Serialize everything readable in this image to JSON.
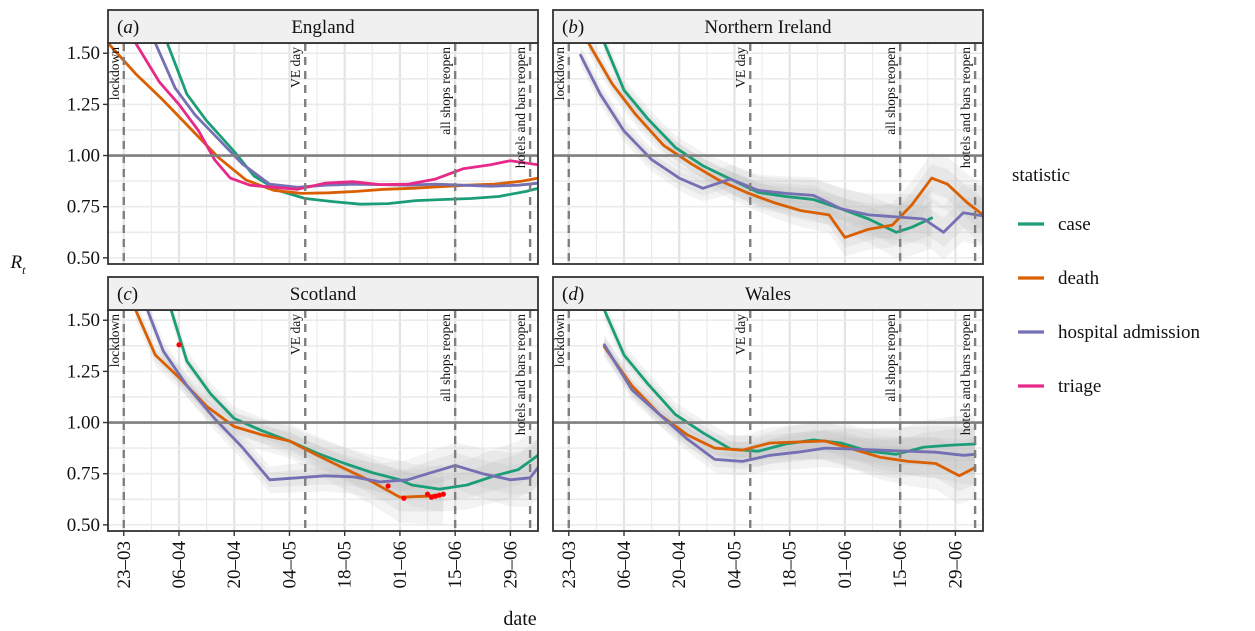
{
  "figure": {
    "ylabel": "R",
    "ylabel_sub": "t",
    "xlabel": "date",
    "legend_title": "statistic"
  },
  "colors": {
    "case": "#1b9e77",
    "death": "#d95f02",
    "hospital admission": "#7570b3",
    "triage": "#e7298a",
    "ribbon": "#bdbdbd",
    "strip_bg": "#f0f0f0",
    "frame": "#333333",
    "grid": "#ebebeb",
    "event_line": "#7f7f7f",
    "hline": "#7f7f7f",
    "marker": "#ff0000"
  },
  "chart_data": {
    "type": "line",
    "facets": [
      "(a) England",
      "(b) Northern Ireland",
      "(c) Scotland",
      "(d) Wales"
    ],
    "x_domain": [
      "2020-03-19",
      "2020-07-06"
    ],
    "x_ticks": [
      "2020-03-23",
      "2020-04-06",
      "2020-04-20",
      "2020-05-04",
      "2020-05-18",
      "2020-06-01",
      "2020-06-15",
      "2020-06-29"
    ],
    "x_tick_labels": [
      "23–03",
      "06–04",
      "20–04",
      "04–05",
      "18–05",
      "01–06",
      "15–06",
      "29–06"
    ],
    "ylim": [
      0.47,
      1.55
    ],
    "y_ticks": [
      0.5,
      0.75,
      1.0,
      1.25,
      1.5
    ],
    "y_tick_labels": [
      "0.50",
      "0.75",
      "1.00",
      "1.25",
      "1.50"
    ],
    "reference_line": 1.0,
    "events": [
      {
        "date": "2020-03-23",
        "label": "lockdown"
      },
      {
        "date": "2020-05-08",
        "label": "VE day"
      },
      {
        "date": "2020-06-15",
        "label": "all shops reopen"
      },
      {
        "date": "2020-07-04",
        "label": "hotels and bars reopen"
      }
    ],
    "legend": {
      "title": "statistic",
      "position": "right",
      "entries": [
        "case",
        "death",
        "hospital admission",
        "triage"
      ]
    },
    "panels": [
      {
        "tag": "(a)",
        "title": "England",
        "ribbon": false,
        "markers": [],
        "series": [
          {
            "name": "case",
            "x": [
              "2020-04-03",
              "2020-04-08",
              "2020-04-13",
              "2020-04-20",
              "2020-04-25",
              "2020-05-01",
              "2020-05-08",
              "2020-05-15",
              "2020-05-22",
              "2020-05-29",
              "2020-06-05",
              "2020-06-12",
              "2020-06-19",
              "2020-06-26",
              "2020-07-03",
              "2020-07-06"
            ],
            "values": [
              1.55,
              1.3,
              1.17,
              1.02,
              0.9,
              0.83,
              0.79,
              0.775,
              0.762,
              0.765,
              0.78,
              0.785,
              0.79,
              0.8,
              0.825,
              0.84
            ]
          },
          {
            "name": "death",
            "x": [
              "2020-03-19",
              "2020-03-26",
              "2020-04-02",
              "2020-04-09",
              "2020-04-16",
              "2020-04-23",
              "2020-04-30",
              "2020-05-07",
              "2020-05-14",
              "2020-05-21",
              "2020-05-28",
              "2020-06-04",
              "2020-06-11",
              "2020-06-18",
              "2020-06-25",
              "2020-07-02",
              "2020-07-06"
            ],
            "values": [
              1.55,
              1.4,
              1.27,
              1.13,
              0.99,
              0.88,
              0.83,
              0.815,
              0.818,
              0.825,
              0.835,
              0.84,
              0.848,
              0.855,
              0.86,
              0.875,
              0.89
            ]
          },
          {
            "name": "hospital admission",
            "x": [
              "2020-03-31",
              "2020-04-05",
              "2020-04-10",
              "2020-04-16",
              "2020-04-22",
              "2020-04-29",
              "2020-05-06",
              "2020-05-13",
              "2020-05-20",
              "2020-05-27",
              "2020-06-03",
              "2020-06-10",
              "2020-06-17",
              "2020-06-24",
              "2020-07-01",
              "2020-07-06"
            ],
            "values": [
              1.55,
              1.33,
              1.2,
              1.08,
              0.96,
              0.86,
              0.845,
              0.855,
              0.86,
              0.858,
              0.855,
              0.86,
              0.855,
              0.85,
              0.855,
              0.865
            ]
          },
          {
            "name": "triage",
            "x": [
              "2020-03-26",
              "2020-04-01",
              "2020-04-06",
              "2020-04-11",
              "2020-04-15",
              "2020-04-19",
              "2020-04-24",
              "2020-04-30",
              "2020-05-06",
              "2020-05-13",
              "2020-05-20",
              "2020-05-27",
              "2020-06-03",
              "2020-06-10",
              "2020-06-17",
              "2020-06-24",
              "2020-06-29",
              "2020-07-06"
            ],
            "values": [
              1.55,
              1.36,
              1.25,
              1.12,
              0.98,
              0.89,
              0.855,
              0.845,
              0.835,
              0.865,
              0.872,
              0.858,
              0.86,
              0.885,
              0.935,
              0.955,
              0.975,
              0.955
            ]
          }
        ]
      },
      {
        "tag": "(b)",
        "title": "Northern Ireland",
        "ribbon": true,
        "markers": [],
        "series": [
          {
            "name": "case",
            "x": [
              "2020-04-01",
              "2020-04-06",
              "2020-04-12",
              "2020-04-19",
              "2020-04-26",
              "2020-05-03",
              "2020-05-10",
              "2020-05-17",
              "2020-05-24",
              "2020-05-31",
              "2020-06-07",
              "2020-06-14",
              "2020-06-18",
              "2020-06-23"
            ],
            "values": [
              1.55,
              1.32,
              1.18,
              1.04,
              0.95,
              0.885,
              0.82,
              0.8,
              0.785,
              0.74,
              0.69,
              0.625,
              0.65,
              0.695
            ]
          },
          {
            "name": "death",
            "x": [
              "2020-03-28",
              "2020-04-03",
              "2020-04-09",
              "2020-04-16",
              "2020-04-23",
              "2020-04-30",
              "2020-05-07",
              "2020-05-14",
              "2020-05-21",
              "2020-05-28",
              "2020-06-01",
              "2020-06-07",
              "2020-06-13",
              "2020-06-18",
              "2020-06-23",
              "2020-06-27",
              "2020-07-02",
              "2020-07-06"
            ],
            "values": [
              1.55,
              1.35,
              1.2,
              1.05,
              0.96,
              0.88,
              0.82,
              0.77,
              0.73,
              0.71,
              0.6,
              0.64,
              0.66,
              0.76,
              0.89,
              0.86,
              0.77,
              0.71
            ]
          },
          {
            "name": "hospital admission",
            "x": [
              "2020-03-26",
              "2020-03-31",
              "2020-04-06",
              "2020-04-13",
              "2020-04-20",
              "2020-04-26",
              "2020-05-03",
              "2020-05-10",
              "2020-05-17",
              "2020-05-24",
              "2020-05-31",
              "2020-06-07",
              "2020-06-14",
              "2020-06-21",
              "2020-06-26",
              "2020-07-01",
              "2020-07-06"
            ],
            "values": [
              1.49,
              1.3,
              1.12,
              0.98,
              0.89,
              0.84,
              0.885,
              0.83,
              0.815,
              0.805,
              0.74,
              0.71,
              0.7,
              0.69,
              0.625,
              0.72,
              0.705
            ]
          }
        ]
      },
      {
        "tag": "(c)",
        "title": "Scotland",
        "ribbon": true,
        "markers": [
          {
            "date": "2020-04-06",
            "value": 1.38
          },
          {
            "date": "2020-05-29",
            "value": 0.69
          },
          {
            "date": "2020-06-02",
            "value": 0.63
          },
          {
            "date": "2020-06-08",
            "value": 0.65
          },
          {
            "date": "2020-06-09",
            "value": 0.635
          },
          {
            "date": "2020-06-10",
            "value": 0.64
          },
          {
            "date": "2020-06-11",
            "value": 0.645
          },
          {
            "date": "2020-06-12",
            "value": 0.65
          }
        ],
        "series": [
          {
            "name": "case",
            "x": [
              "2020-04-04",
              "2020-04-08",
              "2020-04-14",
              "2020-04-20",
              "2020-04-27",
              "2020-05-04",
              "2020-05-11",
              "2020-05-18",
              "2020-05-25",
              "2020-06-01",
              "2020-06-04",
              "2020-06-11",
              "2020-06-18",
              "2020-06-25",
              "2020-07-01",
              "2020-07-06"
            ],
            "values": [
              1.55,
              1.3,
              1.14,
              1.02,
              0.96,
              0.91,
              0.85,
              0.8,
              0.755,
              0.72,
              0.695,
              0.675,
              0.695,
              0.74,
              0.77,
              0.84
            ]
          },
          {
            "name": "death",
            "x": [
              "2020-03-26",
              "2020-03-31",
              "2020-04-06",
              "2020-04-13",
              "2020-04-20",
              "2020-04-27",
              "2020-05-04",
              "2020-05-11",
              "2020-05-18",
              "2020-05-25",
              "2020-06-01",
              "2020-06-08",
              "2020-06-12"
            ],
            "values": [
              1.55,
              1.33,
              1.22,
              1.08,
              0.98,
              0.94,
              0.91,
              0.84,
              0.775,
              0.71,
              0.635,
              0.64,
              0.65
            ]
          },
          {
            "name": "hospital admission",
            "x": [
              "2020-03-29",
              "2020-04-02",
              "2020-04-08",
              "2020-04-15",
              "2020-04-22",
              "2020-04-29",
              "2020-05-06",
              "2020-05-13",
              "2020-05-20",
              "2020-05-27",
              "2020-06-03",
              "2020-06-08",
              "2020-06-15",
              "2020-06-22",
              "2020-06-29",
              "2020-07-04",
              "2020-07-06"
            ],
            "values": [
              1.55,
              1.35,
              1.18,
              1.02,
              0.88,
              0.72,
              0.73,
              0.74,
              0.735,
              0.71,
              0.72,
              0.75,
              0.79,
              0.75,
              0.72,
              0.73,
              0.78
            ]
          }
        ]
      },
      {
        "tag": "(d)",
        "title": "Wales",
        "ribbon": true,
        "markers": [],
        "series": [
          {
            "name": "case",
            "x": [
              "2020-04-01",
              "2020-04-06",
              "2020-04-12",
              "2020-04-19",
              "2020-04-26",
              "2020-05-03",
              "2020-05-10",
              "2020-05-17",
              "2020-05-24",
              "2020-05-31",
              "2020-06-07",
              "2020-06-14",
              "2020-06-21",
              "2020-06-28",
              "2020-07-04"
            ],
            "values": [
              1.55,
              1.33,
              1.19,
              1.04,
              0.95,
              0.87,
              0.86,
              0.895,
              0.915,
              0.9,
              0.86,
              0.845,
              0.88,
              0.89,
              0.895
            ]
          },
          {
            "name": "death",
            "x": [
              "2020-04-01",
              "2020-04-08",
              "2020-04-15",
              "2020-04-22",
              "2020-04-29",
              "2020-05-06",
              "2020-05-13",
              "2020-05-20",
              "2020-05-27",
              "2020-06-03",
              "2020-06-10",
              "2020-06-17",
              "2020-06-24",
              "2020-06-30",
              "2020-07-04"
            ],
            "values": [
              1.37,
              1.18,
              1.04,
              0.94,
              0.875,
              0.865,
              0.9,
              0.905,
              0.91,
              0.87,
              0.83,
              0.81,
              0.8,
              0.74,
              0.78
            ]
          },
          {
            "name": "hospital admission",
            "x": [
              "2020-04-01",
              "2020-04-08",
              "2020-04-15",
              "2020-04-22",
              "2020-04-29",
              "2020-05-06",
              "2020-05-13",
              "2020-05-20",
              "2020-05-27",
              "2020-06-03",
              "2020-06-10",
              "2020-06-17",
              "2020-06-24",
              "2020-07-01",
              "2020-07-04"
            ],
            "values": [
              1.38,
              1.16,
              1.04,
              0.92,
              0.82,
              0.81,
              0.84,
              0.855,
              0.875,
              0.87,
              0.865,
              0.86,
              0.855,
              0.84,
              0.845
            ]
          }
        ]
      }
    ]
  }
}
